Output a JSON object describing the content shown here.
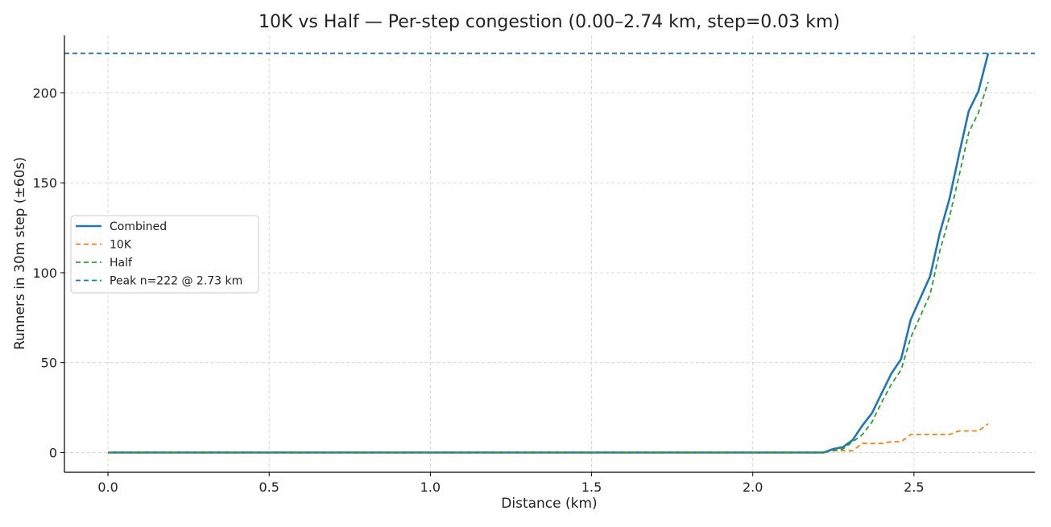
{
  "chart_data": {
    "type": "line",
    "title": "10K vs Half — Per-step congestion (0.00–2.74 km, step=0.03 km)",
    "xlabel": "Distance (km)",
    "ylabel": "Runners in 30m step (±60s)",
    "xlim": [
      -0.135,
      2.875
    ],
    "ylim": [
      -11,
      232
    ],
    "xticks": [
      "0.0",
      "0.5",
      "1.0",
      "1.5",
      "2.0",
      "2.5"
    ],
    "xtick_values": [
      0,
      0.5,
      1.0,
      1.5,
      2.0,
      2.5
    ],
    "yticks": [
      "0",
      "50",
      "100",
      "150",
      "200"
    ],
    "ytick_values": [
      0,
      50,
      100,
      150,
      200
    ],
    "grid": true,
    "legend_position": "center-left",
    "series": [
      {
        "name": "Combined",
        "color": "#1f77b4",
        "style": "solid",
        "x": [
          0,
          2.22,
          2.25,
          2.28,
          2.31,
          2.34,
          2.37,
          2.4,
          2.43,
          2.46,
          2.49,
          2.52,
          2.55,
          2.58,
          2.61,
          2.64,
          2.67,
          2.7,
          2.73
        ],
        "y": [
          0,
          0,
          2,
          3,
          7,
          15,
          22,
          33,
          44,
          52,
          74,
          86,
          98,
          122,
          141,
          166,
          190,
          201,
          222
        ]
      },
      {
        "name": "10K",
        "color": "#ff7f0e",
        "style": "dashed",
        "x": [
          0,
          2.22,
          2.25,
          2.28,
          2.31,
          2.34,
          2.37,
          2.4,
          2.43,
          2.46,
          2.49,
          2.52,
          2.55,
          2.58,
          2.61,
          2.64,
          2.67,
          2.7,
          2.73
        ],
        "y": [
          0,
          0,
          1,
          1,
          1,
          5,
          5,
          5,
          6,
          6,
          10,
          10,
          10,
          10,
          10,
          12,
          12,
          12,
          16
        ]
      },
      {
        "name": "Half",
        "color": "#2ca02c",
        "style": "dashed",
        "x": [
          0,
          2.22,
          2.25,
          2.28,
          2.31,
          2.34,
          2.37,
          2.4,
          2.43,
          2.46,
          2.49,
          2.52,
          2.55,
          2.58,
          2.61,
          2.64,
          2.67,
          2.7,
          2.73
        ],
        "y": [
          0,
          0,
          1,
          2,
          6,
          10,
          17,
          28,
          38,
          46,
          64,
          76,
          88,
          112,
          131,
          154,
          178,
          189,
          206
        ]
      }
    ],
    "peak_line": {
      "name": "Peak n=222 @ 2.73 km",
      "color": "#1f77b4",
      "style": "dashed",
      "y": 222
    }
  }
}
